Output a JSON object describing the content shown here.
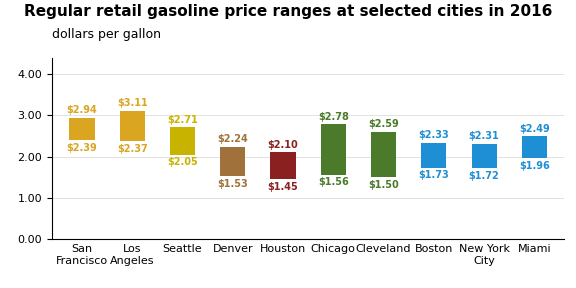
{
  "chart_data": {
    "type": "bar",
    "title": "Regular retail gasoline price ranges at selected cities in 2016",
    "subtitle": "dollars per gallon",
    "categories": [
      "San\nFrancisco",
      "Los\nAngeles",
      "Seattle",
      "Denver",
      "Houston",
      "Chicago",
      "Cleveland",
      "Boston",
      "New York\nCity",
      "Miami"
    ],
    "high": [
      2.94,
      3.11,
      2.71,
      2.24,
      2.1,
      2.78,
      2.59,
      2.33,
      2.31,
      2.49
    ],
    "high_labels": [
      "$2.94",
      "$3.11",
      "$2.71",
      "$2.24",
      "$2.10",
      "$2.78",
      "$2.59",
      "$2.33",
      "$2.31",
      "$2.49"
    ],
    "low": [
      2.39,
      2.37,
      2.05,
      1.53,
      1.45,
      1.56,
      1.5,
      1.73,
      1.72,
      1.96
    ],
    "low_labels": [
      "$2.39",
      "$2.37",
      "$2.05",
      "$1.53",
      "$1.45",
      "$1.56",
      "$1.50",
      "$1.73",
      "$1.72",
      "$1.96"
    ],
    "colors": [
      "#DAA520",
      "#DAA520",
      "#C8B400",
      "#A0713A",
      "#8B2020",
      "#4A7A2A",
      "#4A7A2A",
      "#1E8FD5",
      "#1E8FD5",
      "#1E8FD5"
    ],
    "ylim": [
      0.0,
      4.4
    ],
    "yticks": [
      {
        "value": 0.0,
        "label": "0.00"
      },
      {
        "value": 1.0,
        "label": "1.00"
      },
      {
        "value": 2.0,
        "label": "2.00"
      },
      {
        "value": 3.0,
        "label": "3.00"
      },
      {
        "value": 4.0,
        "label": "4.00"
      }
    ],
    "grid": true,
    "data_labels": true
  }
}
